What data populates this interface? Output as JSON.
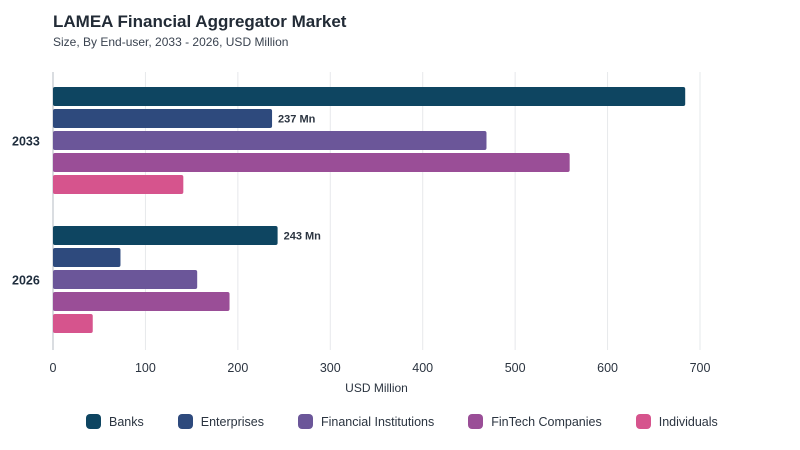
{
  "header": {
    "title": "LAMEA Financial Aggregator Market",
    "subtitle": "Size, By End-user, 2033 - 2026, USD Million"
  },
  "chart_data": {
    "type": "bar",
    "orientation": "horizontal",
    "title": "LAMEA Financial Aggregator Market",
    "subtitle": "Size, By End-user, 2033 - 2026, USD Million",
    "xlabel": "USD Million",
    "ylabel": "",
    "xlim": [
      0,
      700
    ],
    "xticks": [
      0,
      100,
      200,
      300,
      400,
      500,
      600,
      700
    ],
    "grid": true,
    "legend_position": "bottom",
    "categories": [
      "2033",
      "2026"
    ],
    "series": [
      {
        "name": "Banks",
        "color": "#0e4561",
        "values": [
          684,
          243
        ]
      },
      {
        "name": "Enterprises",
        "color": "#2e4a7d",
        "values": [
          237,
          73
        ]
      },
      {
        "name": "Financial Institutions",
        "color": "#6b5699",
        "values": [
          469,
          156
        ]
      },
      {
        "name": "FinTech Companies",
        "color": "#9a4e97",
        "values": [
          559,
          191
        ]
      },
      {
        "name": "Individuals",
        "color": "#d6548d",
        "values": [
          141,
          43
        ]
      }
    ],
    "data_labels": [
      {
        "category": "2033",
        "series": "Enterprises",
        "text": "237 Mn"
      },
      {
        "category": "2026",
        "series": "Banks",
        "text": "243 Mn"
      }
    ]
  }
}
